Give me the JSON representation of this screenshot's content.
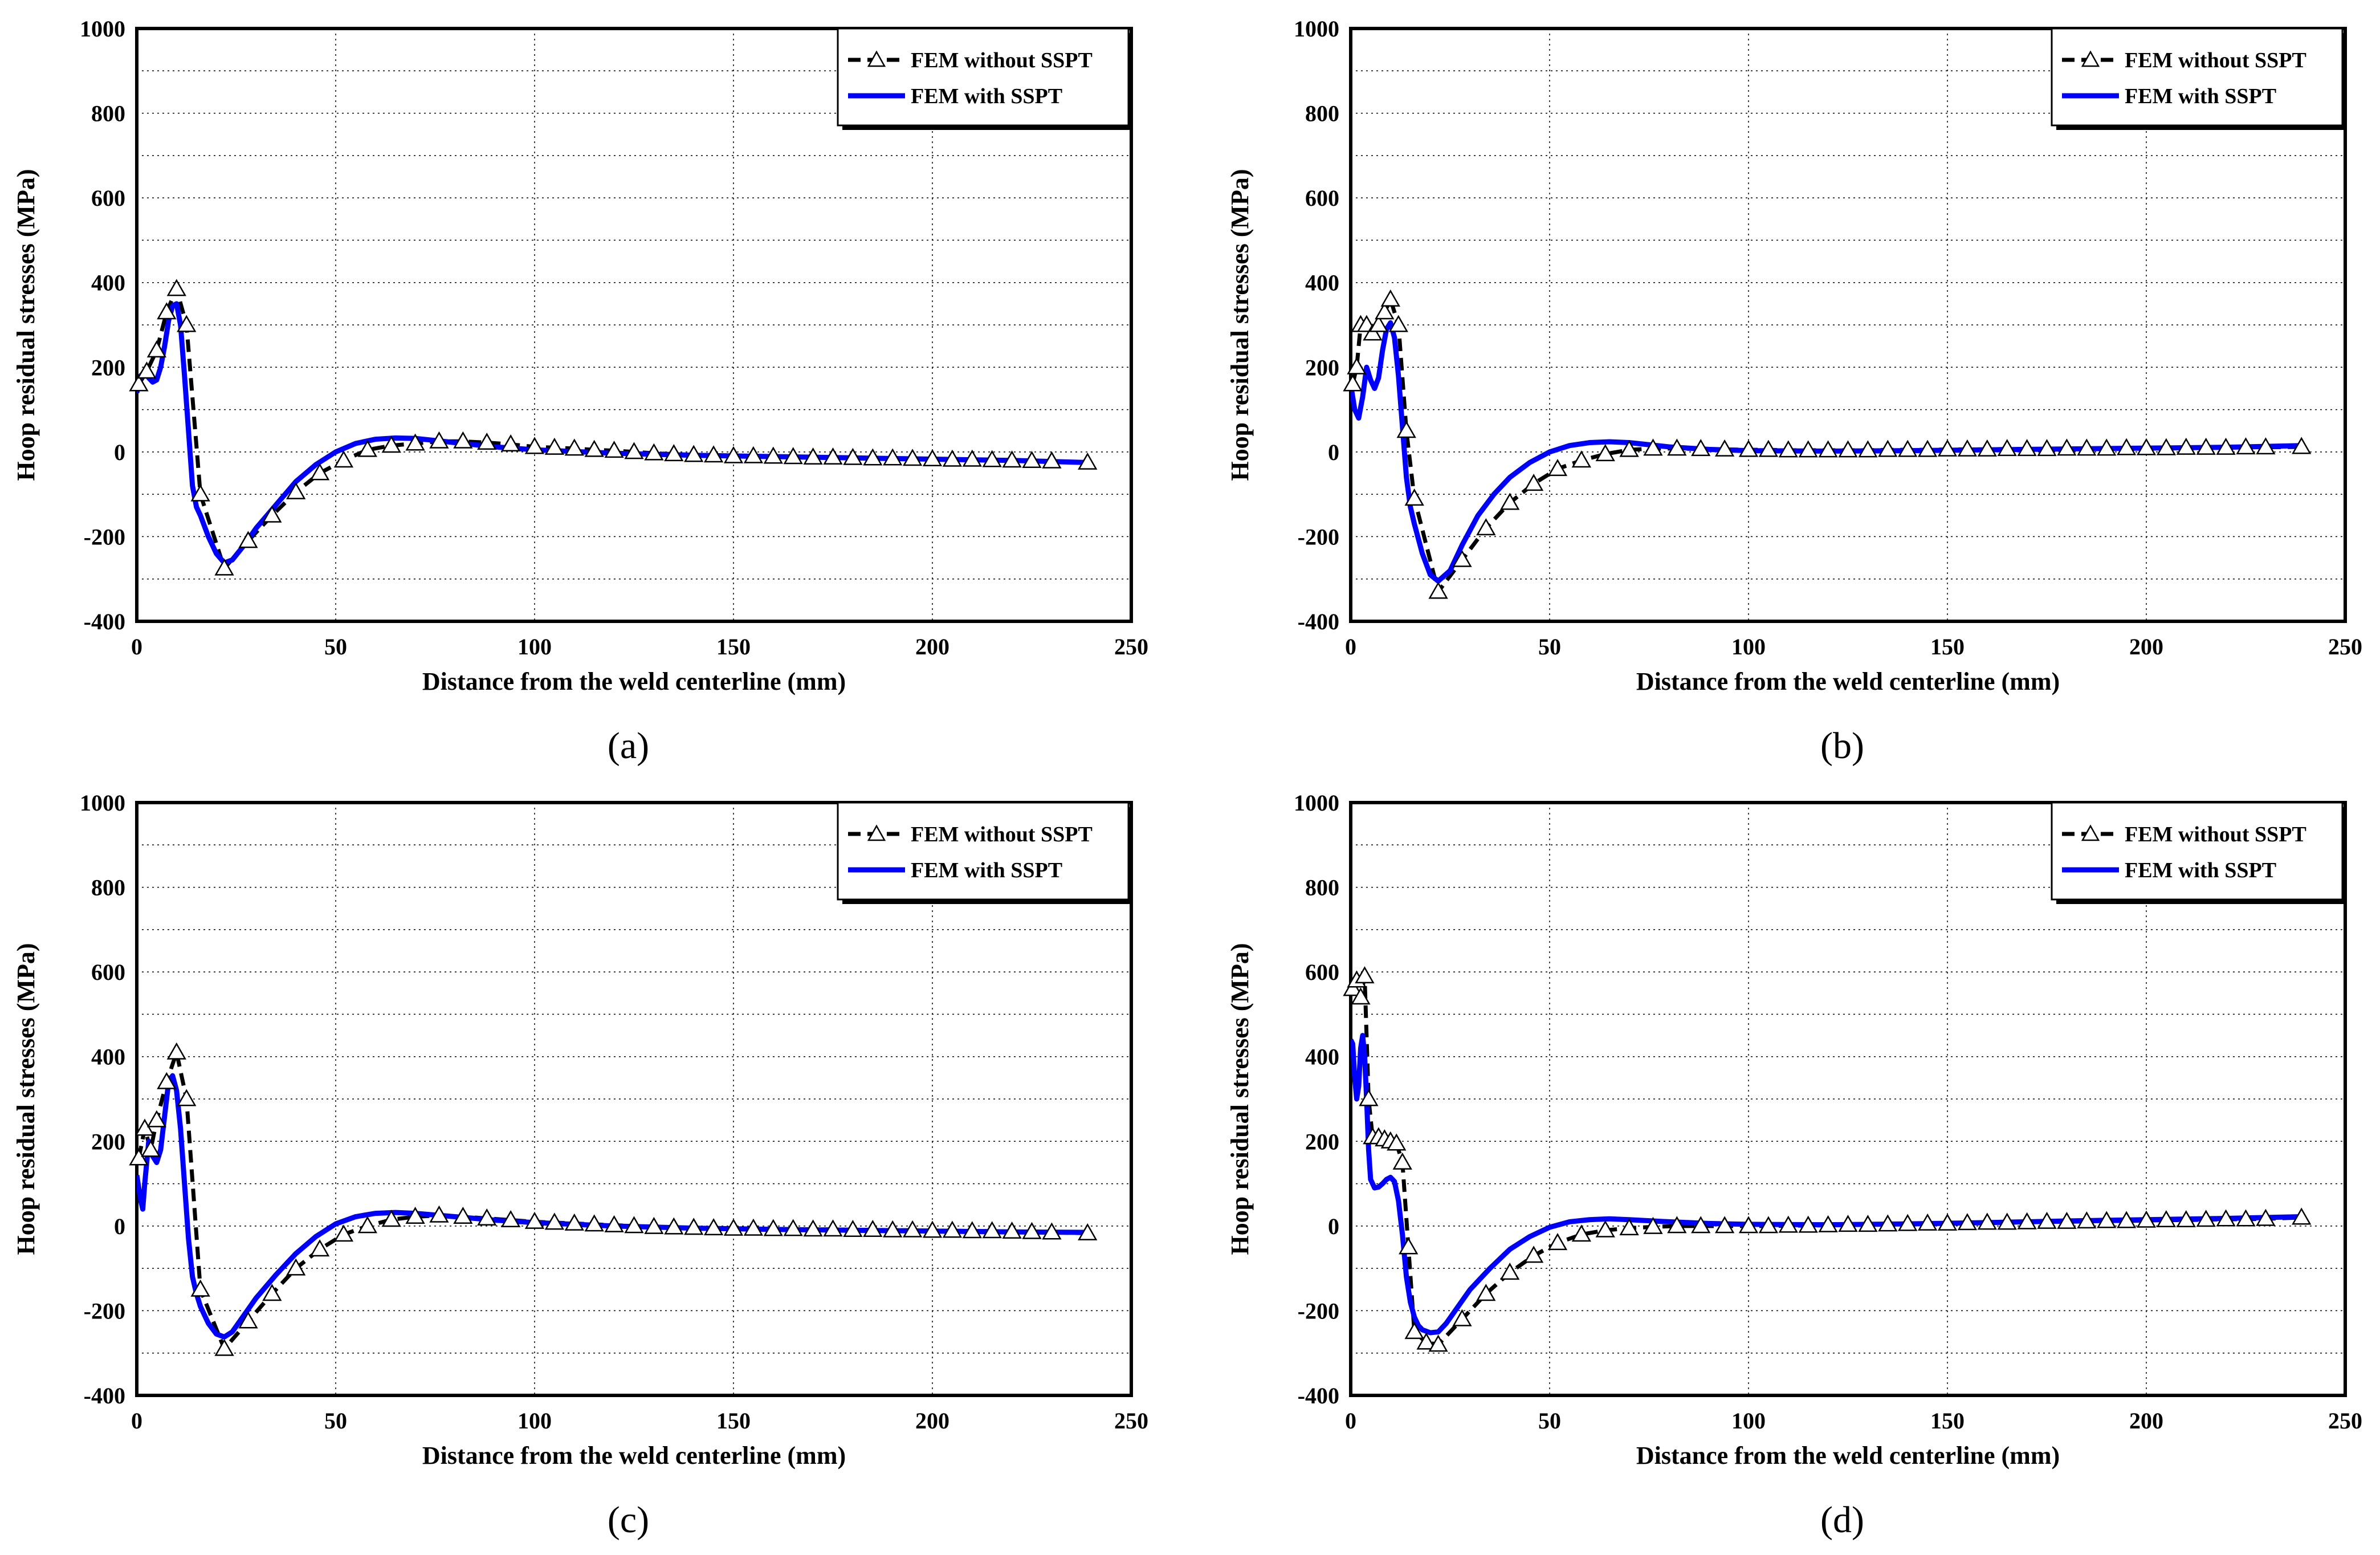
{
  "figure": {
    "panel_labels": [
      "(a)",
      "(b)",
      "(c)",
      "(d)"
    ]
  },
  "chart_data": [
    {
      "type": "line",
      "panel": "(a)",
      "xlabel": "Distance from the weld centerline (mm)",
      "ylabel": "Hoop residual stresses (MPa)",
      "xlim": [
        0,
        250
      ],
      "ylim": [
        -400,
        1000
      ],
      "xticks": [
        0,
        50,
        100,
        150,
        200,
        250
      ],
      "yticks": [
        -400,
        -200,
        0,
        200,
        400,
        600,
        800,
        1000
      ],
      "legend": [
        "FEM without SSPT",
        "FEM with SSPT"
      ],
      "series": [
        {
          "name": "FEM without SSPT",
          "x": [
            0.5,
            2.5,
            5,
            7.5,
            10,
            12.5,
            16,
            22,
            28,
            34,
            40,
            46,
            52,
            58,
            64,
            70,
            76,
            82,
            88,
            94,
            100,
            105,
            110,
            115,
            120,
            125,
            130,
            135,
            140,
            145,
            150,
            155,
            160,
            165,
            170,
            175,
            180,
            185,
            190,
            195,
            200,
            205,
            210,
            215,
            220,
            225,
            230,
            239
          ],
          "y": [
            160,
            190,
            240,
            330,
            385,
            300,
            -100,
            -275,
            -210,
            -150,
            -95,
            -50,
            -20,
            5,
            15,
            20,
            25,
            25,
            22,
            18,
            12,
            10,
            8,
            5,
            3,
            0,
            -3,
            -5,
            -7,
            -8,
            -10,
            -10,
            -11,
            -12,
            -13,
            -13,
            -14,
            -15,
            -15,
            -16,
            -17,
            -18,
            -18,
            -19,
            -20,
            -21,
            -22,
            -25
          ]
        },
        {
          "name": "FEM with SSPT",
          "x": [
            0,
            1,
            2,
            3,
            4,
            5,
            6,
            7,
            8,
            9,
            10,
            11,
            12,
            13,
            14,
            15,
            16,
            18,
            20,
            22,
            24,
            27,
            30,
            35,
            40,
            45,
            50,
            55,
            60,
            65,
            70,
            80,
            90,
            100,
            120,
            140,
            160,
            180,
            200,
            220,
            239
          ],
          "y": [
            140,
            180,
            190,
            175,
            165,
            170,
            200,
            250,
            310,
            345,
            350,
            300,
            180,
            50,
            -80,
            -130,
            -150,
            -200,
            -240,
            -262,
            -255,
            -220,
            -180,
            -125,
            -70,
            -30,
            0,
            20,
            30,
            33,
            32,
            22,
            12,
            5,
            -3,
            -8,
            -11,
            -14,
            -17,
            -20,
            -25
          ]
        }
      ]
    },
    {
      "type": "line",
      "panel": "(b)",
      "xlabel": "Distance from the weld centerline (mm)",
      "ylabel": "Hoop residual stresses (MPa)",
      "xlim": [
        0,
        250
      ],
      "ylim": [
        -400,
        1000
      ],
      "xticks": [
        0,
        50,
        100,
        150,
        200,
        250
      ],
      "yticks": [
        -400,
        -200,
        0,
        200,
        400,
        600,
        800,
        1000
      ],
      "legend": [
        "FEM without SSPT",
        "FEM with SSPT"
      ],
      "series": [
        {
          "name": "FEM without SSPT",
          "x": [
            0.5,
            1.5,
            2.5,
            4,
            5.5,
            7,
            8.5,
            10,
            12,
            14,
            16,
            22,
            28,
            34,
            40,
            46,
            52,
            58,
            64,
            70,
            76,
            82,
            88,
            94,
            100,
            105,
            110,
            115,
            120,
            125,
            130,
            135,
            140,
            145,
            150,
            155,
            160,
            165,
            170,
            175,
            180,
            185,
            190,
            195,
            200,
            205,
            210,
            215,
            220,
            225,
            230,
            239
          ],
          "y": [
            160,
            200,
            300,
            300,
            280,
            300,
            330,
            360,
            300,
            50,
            -110,
            -330,
            -255,
            -180,
            -120,
            -75,
            -40,
            -20,
            -5,
            5,
            8,
            8,
            7,
            6,
            5,
            5,
            4,
            4,
            4,
            4,
            4,
            5,
            5,
            5,
            6,
            6,
            6,
            7,
            7,
            7,
            8,
            8,
            8,
            9,
            9,
            9,
            10,
            10,
            10,
            11,
            11,
            12
          ]
        },
        {
          "name": "FEM with SSPT",
          "x": [
            0,
            1,
            2,
            3,
            4,
            5,
            6,
            7,
            8,
            9,
            10,
            11,
            12,
            13,
            14,
            15,
            16,
            18,
            20,
            22,
            25,
            28,
            32,
            36,
            40,
            45,
            50,
            55,
            60,
            65,
            70,
            80,
            90,
            100,
            120,
            140,
            160,
            180,
            200,
            220,
            239
          ],
          "y": [
            160,
            100,
            80,
            130,
            200,
            170,
            150,
            175,
            240,
            290,
            305,
            270,
            180,
            60,
            -60,
            -130,
            -170,
            -240,
            -290,
            -305,
            -280,
            -220,
            -150,
            -100,
            -60,
            -25,
            0,
            15,
            22,
            24,
            22,
            12,
            6,
            3,
            2,
            3,
            5,
            7,
            9,
            11,
            15
          ]
        }
      ]
    },
    {
      "type": "line",
      "panel": "(c)",
      "xlabel": "Distance from the weld centerline (mm)",
      "ylabel": "Hoop residual stresses (MPa)",
      "xlim": [
        0,
        250
      ],
      "ylim": [
        -400,
        1000
      ],
      "xticks": [
        0,
        50,
        100,
        150,
        200,
        250
      ],
      "yticks": [
        -400,
        -200,
        0,
        200,
        400,
        600,
        800,
        1000
      ],
      "legend": [
        "FEM without SSPT",
        "FEM with SSPT"
      ],
      "series": [
        {
          "name": "FEM without SSPT",
          "x": [
            0.5,
            2,
            3.5,
            5,
            7.5,
            10,
            12.5,
            16,
            22,
            28,
            34,
            40,
            46,
            52,
            58,
            64,
            70,
            76,
            82,
            88,
            94,
            100,
            105,
            110,
            115,
            120,
            125,
            130,
            135,
            140,
            145,
            150,
            155,
            160,
            165,
            170,
            175,
            180,
            185,
            190,
            195,
            200,
            205,
            210,
            215,
            220,
            225,
            230,
            239
          ],
          "y": [
            160,
            230,
            180,
            250,
            340,
            410,
            300,
            -150,
            -290,
            -225,
            -160,
            -100,
            -55,
            -20,
            0,
            15,
            22,
            25,
            22,
            18,
            14,
            10,
            8,
            6,
            4,
            2,
            0,
            -2,
            -3,
            -4,
            -5,
            -6,
            -6,
            -7,
            -7,
            -8,
            -8,
            -9,
            -9,
            -10,
            -10,
            -11,
            -11,
            -12,
            -12,
            -13,
            -14,
            -15,
            -17
          ]
        },
        {
          "name": "FEM with SSPT",
          "x": [
            0,
            1,
            1.5,
            2,
            3,
            4,
            5,
            6,
            7,
            8,
            9,
            10,
            11,
            12,
            13,
            14,
            15,
            16,
            18,
            20,
            22,
            24,
            27,
            30,
            35,
            40,
            45,
            50,
            55,
            60,
            65,
            70,
            80,
            90,
            100,
            120,
            140,
            160,
            180,
            200,
            220,
            239
          ],
          "y": [
            120,
            60,
            40,
            100,
            200,
            165,
            150,
            180,
            260,
            340,
            355,
            320,
            230,
            100,
            -30,
            -120,
            -160,
            -190,
            -230,
            -255,
            -262,
            -250,
            -210,
            -170,
            -115,
            -65,
            -25,
            5,
            22,
            30,
            32,
            30,
            22,
            14,
            8,
            0,
            -5,
            -8,
            -10,
            -12,
            -14,
            -15
          ]
        }
      ]
    },
    {
      "type": "line",
      "panel": "(d)",
      "xlabel": "Distance from the weld centerline (mm)",
      "ylabel": "Hoop residual stresses (MPa)",
      "xlim": [
        0,
        250
      ],
      "ylim": [
        -400,
        1000
      ],
      "xticks": [
        0,
        50,
        100,
        150,
        200,
        250
      ],
      "yticks": [
        -400,
        -200,
        0,
        200,
        400,
        600,
        800,
        1000
      ],
      "legend": [
        "FEM without SSPT",
        "FEM with SSPT"
      ],
      "series": [
        {
          "name": "FEM without SSPT",
          "x": [
            0.5,
            1.5,
            2.5,
            3.5,
            4.5,
            5.5,
            7,
            8.5,
            10,
            11.5,
            13,
            14.5,
            16,
            19,
            22,
            28,
            34,
            40,
            46,
            52,
            58,
            64,
            70,
            76,
            82,
            88,
            94,
            100,
            105,
            110,
            115,
            120,
            125,
            130,
            135,
            140,
            145,
            150,
            155,
            160,
            165,
            170,
            175,
            180,
            185,
            190,
            195,
            200,
            205,
            210,
            215,
            220,
            225,
            230,
            239
          ],
          "y": [
            560,
            580,
            540,
            590,
            300,
            210,
            210,
            205,
            200,
            195,
            150,
            -50,
            -250,
            -275,
            -280,
            -220,
            -160,
            -110,
            -70,
            -40,
            -20,
            -10,
            -5,
            -2,
            0,
            0,
            0,
            0,
            0,
            1,
            1,
            2,
            3,
            3,
            4,
            5,
            6,
            6,
            7,
            8,
            8,
            9,
            10,
            10,
            11,
            12,
            12,
            13,
            14,
            14,
            15,
            16,
            16,
            17,
            20
          ]
        },
        {
          "name": "FEM with SSPT",
          "x": [
            0,
            0.5,
            1,
            1.5,
            2,
            2.5,
            3,
            3.5,
            4,
            4.5,
            5,
            6,
            7,
            8,
            9,
            10,
            11,
            12,
            13,
            14,
            15,
            16,
            17,
            18,
            20,
            22,
            24,
            27,
            30,
            35,
            40,
            45,
            50,
            55,
            60,
            65,
            70,
            80,
            90,
            100,
            120,
            140,
            160,
            180,
            200,
            220,
            239
          ],
          "y": [
            440,
            430,
            350,
            300,
            330,
            420,
            450,
            400,
            300,
            180,
            110,
            90,
            92,
            100,
            110,
            115,
            105,
            60,
            -20,
            -120,
            -180,
            -215,
            -235,
            -245,
            -252,
            -250,
            -230,
            -190,
            -150,
            -100,
            -55,
            -25,
            -3,
            10,
            15,
            17,
            15,
            10,
            6,
            4,
            3,
            5,
            8,
            12,
            15,
            18,
            22
          ]
        }
      ]
    }
  ]
}
